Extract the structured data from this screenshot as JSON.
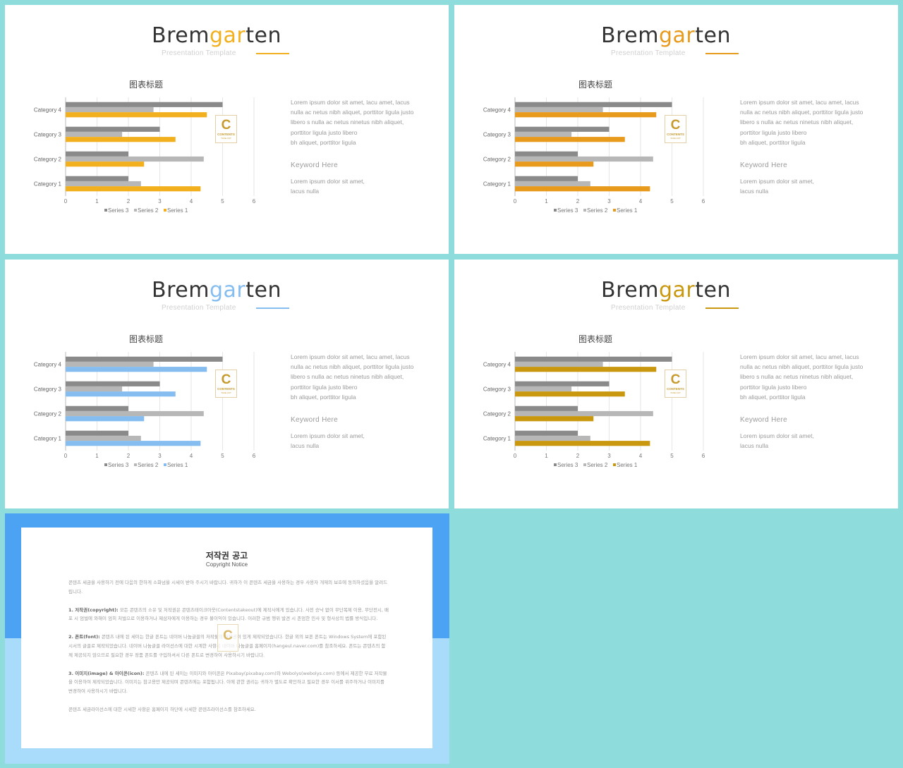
{
  "slides": [
    {
      "title_parts": [
        "Brem",
        "gar",
        "ten"
      ],
      "subtitle": "Presentation  Template",
      "accent": "#f2b01e",
      "chart_title": "图表标题",
      "body_lines": [
        "Lorem ipsum dolor sit amet, lacu amet, lacus",
        "nulla ac netus nibh aliquet, porttitor ligula justo",
        "libero s nulla ac netus ninetus nibh aliquet,",
        "porttitor ligula justo libero",
        "bh aliquet, porttitor ligula"
      ],
      "keyword": "Keyword  Here",
      "keyword_lines": [
        "Lorem ipsum dolor sit amet,",
        "lacus nulla"
      ],
      "logo": {
        "letter": "C",
        "text1": "CONTENTS",
        "text2": "TAKE OUT"
      }
    },
    {
      "title_parts": [
        "Brem",
        "gar",
        "ten"
      ],
      "subtitle": "Presentation  Template",
      "accent": "#e89a1c",
      "chart_title": "图表标题",
      "body_lines": [
        "Lorem ipsum dolor sit amet, lacu amet, lacus",
        "nulla ac netus nibh aliquet, porttitor ligula justo",
        "libero s nulla ac netus ninetus nibh aliquet,",
        "porttitor ligula justo libero",
        "bh aliquet, porttitor ligula"
      ],
      "keyword": "Keyword  Here",
      "keyword_lines": [
        "Lorem ipsum dolor sit amet,",
        "lacus nulla"
      ],
      "logo": {
        "letter": "C",
        "text1": "CONTENTS",
        "text2": "TAKE OUT"
      }
    },
    {
      "title_parts": [
        "Brem",
        "gar",
        "ten"
      ],
      "subtitle": "Presentation  Template",
      "accent": "#85bdf0",
      "chart_title": "图表标题",
      "body_lines": [
        "Lorem ipsum dolor sit amet, lacu amet, lacus",
        "nulla ac netus nibh aliquet, porttitor ligula justo",
        "libero s nulla ac netus ninetus nibh aliquet,",
        "porttitor ligula justo libero",
        "bh aliquet, porttitor ligula"
      ],
      "keyword": "Keyword  Here",
      "keyword_lines": [
        "Lorem ipsum dolor sit amet,",
        "lacus nulla"
      ],
      "logo": {
        "letter": "C",
        "text1": "CONTENTS",
        "text2": "TAKE OUT"
      }
    },
    {
      "title_parts": [
        "Brem",
        "gar",
        "ten"
      ],
      "subtitle": "Presentation  Template",
      "accent": "#c9980f",
      "chart_title": "图表标题",
      "body_lines": [
        "Lorem ipsum dolor sit amet, lacu amet, lacus",
        "nulla ac netus nibh aliquet, porttitor ligula justo",
        "libero s nulla ac netus ninetus nibh aliquet,",
        "porttitor ligula justo libero",
        "bh aliquet, porttitor ligula"
      ],
      "keyword": "Keyword  Here",
      "keyword_lines": [
        "Lorem ipsum dolor sit amet,",
        "lacus nulla"
      ],
      "logo": {
        "letter": "C",
        "text1": "CONTENTS",
        "text2": "TAKE OUT"
      }
    }
  ],
  "chart_data": {
    "type": "bar",
    "orientation": "horizontal",
    "categories": [
      "Category 1",
      "Category 2",
      "Category 3",
      "Category 4"
    ],
    "series": [
      {
        "name": "Series 1",
        "values": [
          4.3,
          2.5,
          3.5,
          4.5
        ]
      },
      {
        "name": "Series 2",
        "values": [
          2.4,
          4.4,
          1.8,
          2.8
        ]
      },
      {
        "name": "Series 3",
        "values": [
          2,
          2,
          3,
          5
        ]
      }
    ],
    "xlim": [
      0,
      6
    ],
    "xticks": [
      "0",
      "1",
      "2",
      "3",
      "4",
      "5",
      "6"
    ],
    "grid": true,
    "legend_position": "bottom",
    "series_colors_fixed": {
      "Series 2": "#b7b7b7",
      "Series 3": "#8a8a8a"
    }
  },
  "notice": {
    "title": "저작권 공고",
    "subtitle": "Copyright Notice",
    "logo_letter": "C",
    "paragraphs": [
      {
        "label": "",
        "text": "콘텐츠 세금을 사용하기 전에 다음의 한하게 소화넘을 시세이 받아 주시기 바랍니다. 귀하가 이 콘텐츠 세금을 사용하는 경우 사용자 개재의 보호에 동의하셨음을 알려드립니다."
      },
      {
        "label": "1. 저작권(copyright):",
        "text": " 모든 콘텐츠의 소유 및 저작권은 콘텐츠테이크아웃(Contentstakeout)에 제작사에게 있습니다. 사전 승낙 없이 무단복제 이용, 무단전시, 배포 시 엄벌에 와해이 엄히 처벌으로 이용하거나 제삼자에게 이용하는 경우 불이익이 있습니다. 이러한 규범 행위 발견 시 존엄한 민사 및 형사상의 법률 방식입니다."
      },
      {
        "label": "2. 폰트(font):",
        "text": " 콘텐츠 내에 된 세이는 한글 폰트는 네이버 나눔글꼴의 저작물의 저작권이 있게 제작되었습니다. 한글 외의 보폰 폰트는 Windows System에 포함된 시서의 글꼴로 제작되었습니다. 네이버 나눔글꼴 라이선스에 대한 시계한 사항은 네이버 나눔글꼴 홈페이지(hangeul.naver.com)를 참조하세요. 폰트는 콘텐츠의 함께 제공되지 않으므로 필요한 경우 정품 폰트를 구입하셔서 다른 폰트로 변경하여 사용하시기 바랍니다."
      },
      {
        "label": "3. 이미지(image) & 아이콘(icon):",
        "text": " 콘텐츠 내에 된 세이는 이미지와 아이콘은 Pixabay(pixabay.com)와 Webolys(webolys.com) 등에서 제공한 무료 저작물을 이용하여 제작되었습니다. 이미지는 참고용만 제공되며 콘텐츠에는 포함됩니다. 이에 관한 권리는 귀하가 별도로 확인하고 필요한 경우 이서를 위주하거나 이미지를 변경하여 사용하시기 바랍니다."
      },
      {
        "label": "",
        "text": "콘텐츠 세금라이선스에 대한 시세한 사항은 홈페이지 하단에 시세한 콘텐츠라이선스를 참조하세요."
      }
    ]
  }
}
